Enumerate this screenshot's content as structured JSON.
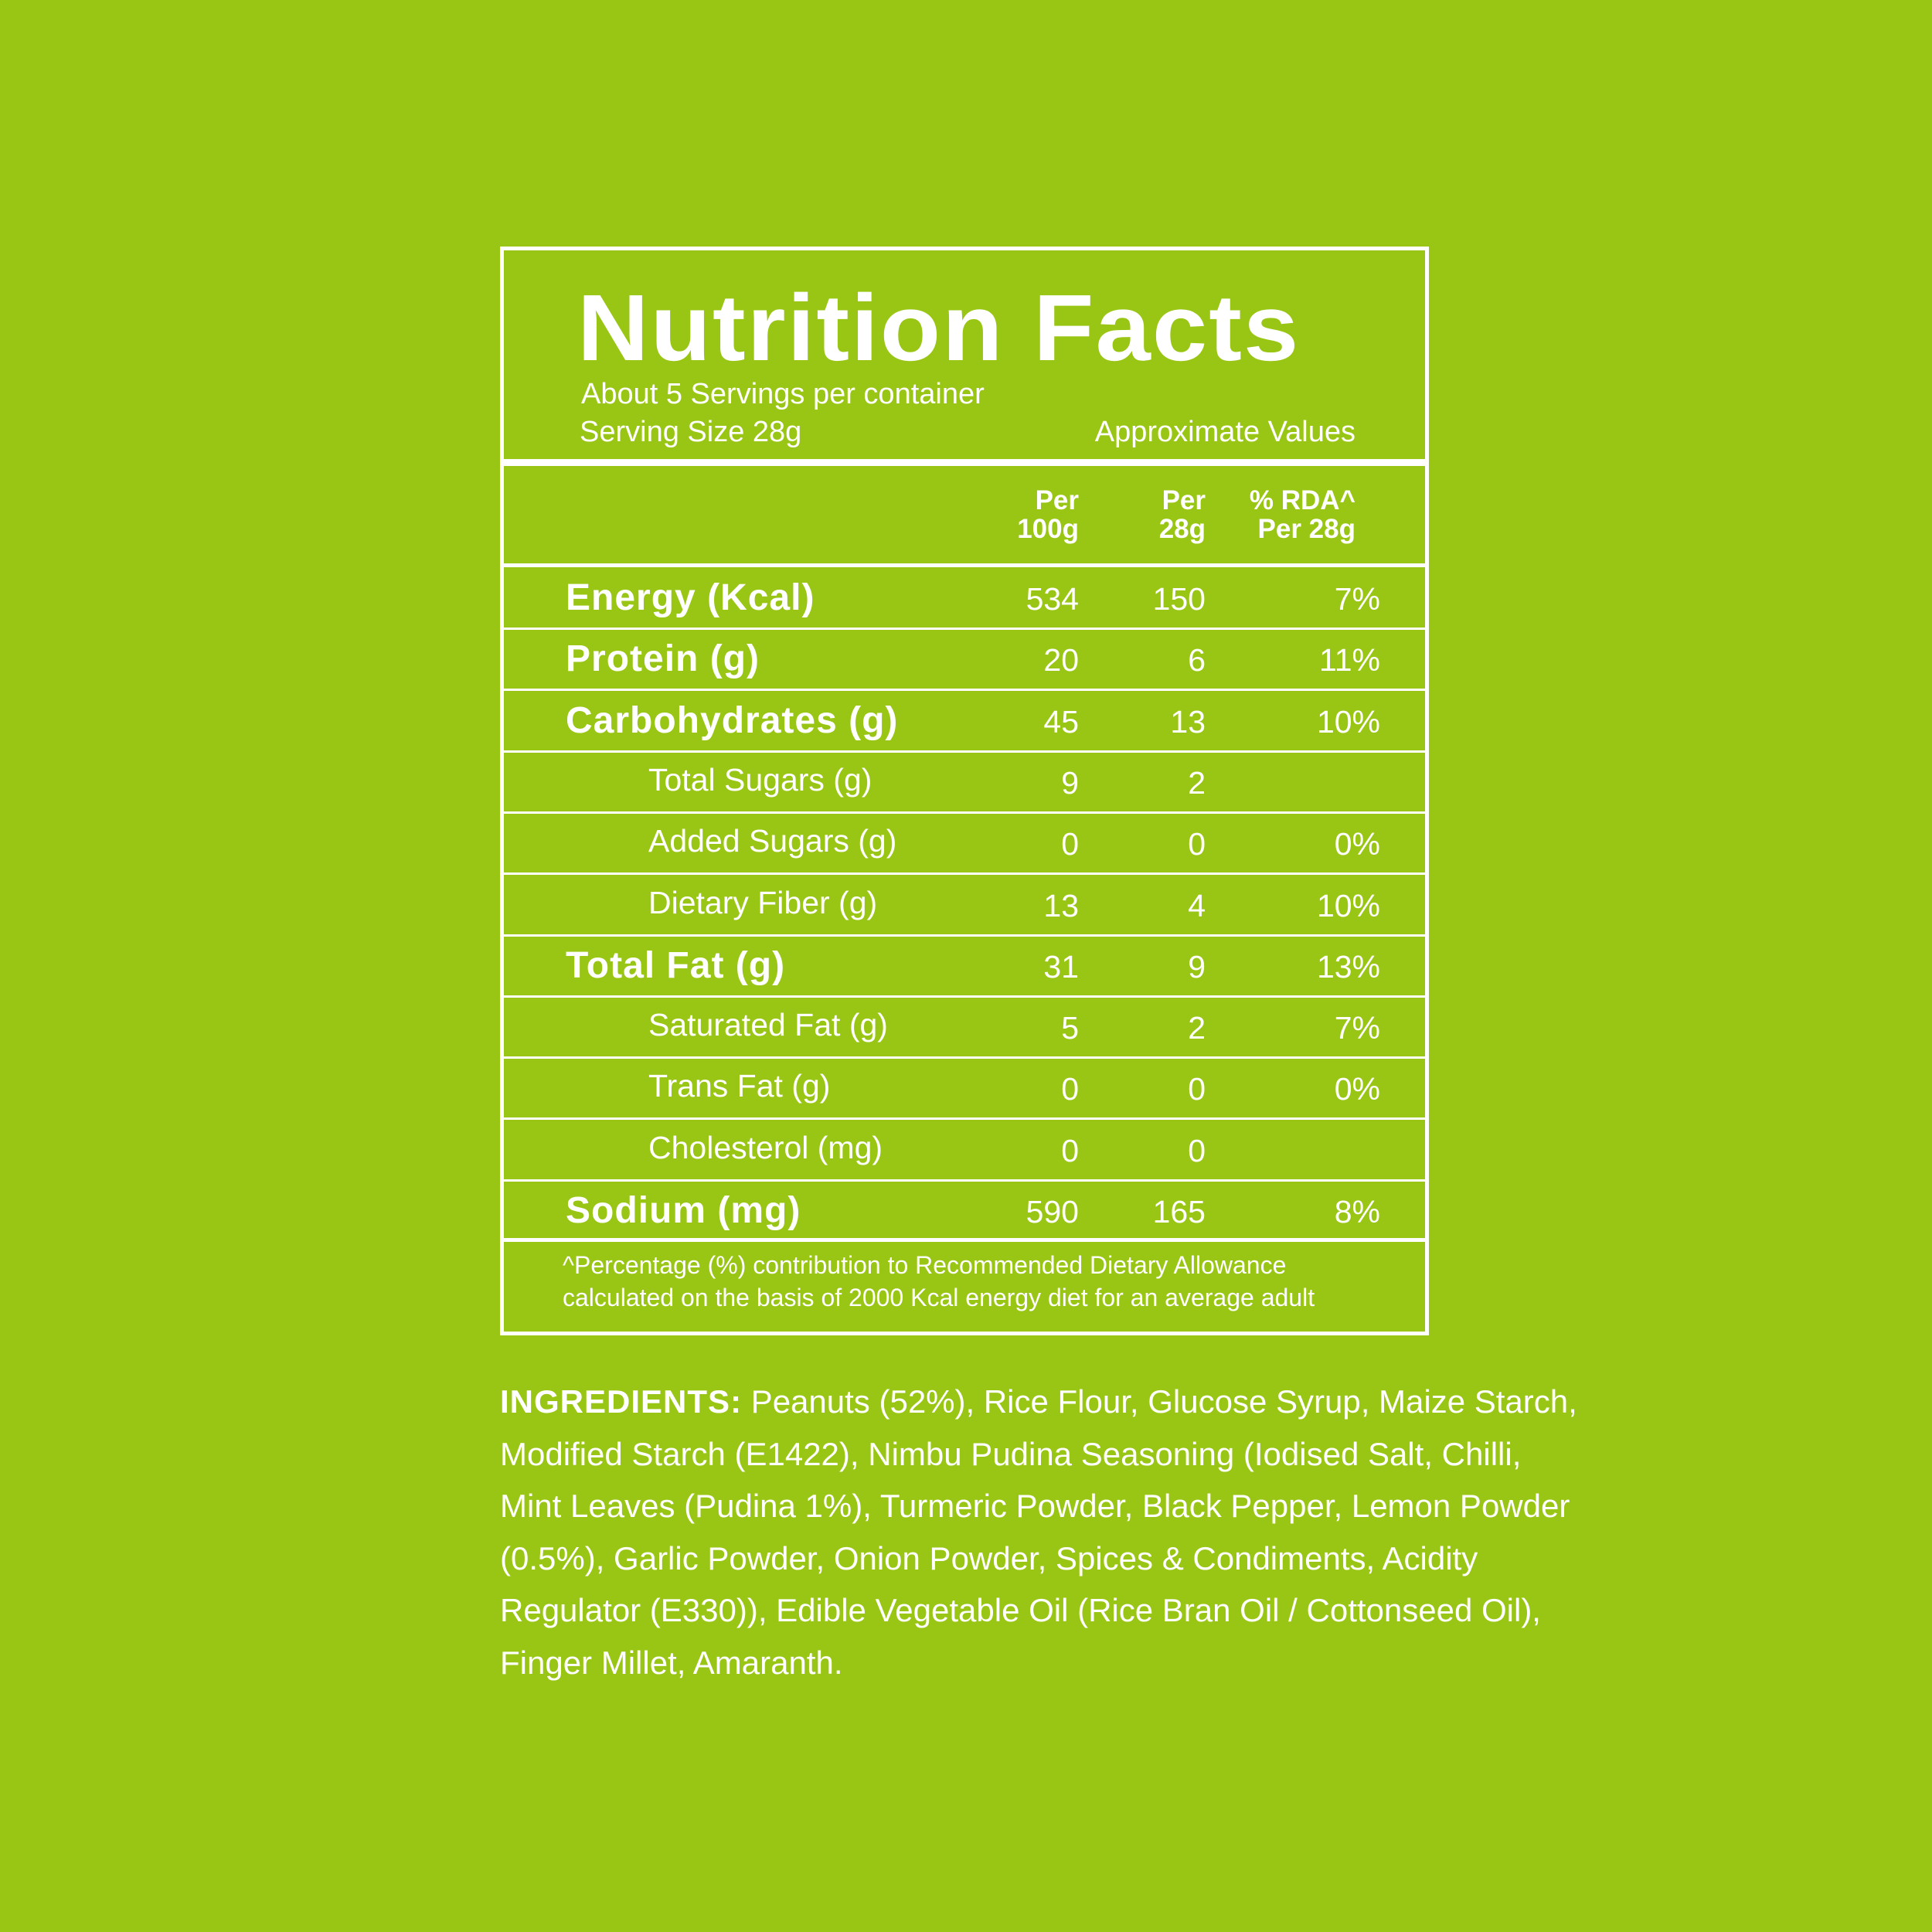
{
  "title": "Nutrition Facts",
  "servings": "About 5 Servings per container",
  "serving_size": "Serving Size 28g",
  "approx": "Approximate Values",
  "columns": [
    {
      "line1": "Per",
      "line2": "100g"
    },
    {
      "line1": "Per",
      "line2": "28g"
    },
    {
      "line1": "% RDA^",
      "line2": "Per 28g"
    }
  ],
  "rows": [
    {
      "label": "Energy (Kcal)",
      "bold": true,
      "per100": "534",
      "per28": "150",
      "rda": "7%"
    },
    {
      "label": "Protein (g)",
      "bold": true,
      "per100": "20",
      "per28": "6",
      "rda": "11%"
    },
    {
      "label": "Carbohydrates (g)",
      "bold": true,
      "per100": "45",
      "per28": "13",
      "rda": "10%"
    },
    {
      "label": "Total Sugars (g)",
      "bold": false,
      "per100": "9",
      "per28": "2",
      "rda": ""
    },
    {
      "label": "Added Sugars (g)",
      "bold": false,
      "per100": "0",
      "per28": "0",
      "rda": "0%"
    },
    {
      "label": "Dietary Fiber (g)",
      "bold": false,
      "per100": "13",
      "per28": "4",
      "rda": "10%"
    },
    {
      "label": "Total Fat (g)",
      "bold": true,
      "per100": "31",
      "per28": "9",
      "rda": "13%"
    },
    {
      "label": "Saturated Fat (g)",
      "bold": false,
      "per100": "5",
      "per28": "2",
      "rda": "7%"
    },
    {
      "label": "Trans Fat (g)",
      "bold": false,
      "per100": "0",
      "per28": "0",
      "rda": "0%"
    },
    {
      "label": "Cholesterol (mg)",
      "bold": false,
      "per100": "0",
      "per28": "0",
      "rda": ""
    },
    {
      "label": "Sodium (mg)",
      "bold": true,
      "per100": "590",
      "per28": "165",
      "rda": "8%"
    }
  ],
  "footnote": {
    "line1": "^Percentage (%) contribution to Recommended Dietary Allowance",
    "line2": "calculated on the basis of 2000 Kcal energy diet for an average adult"
  },
  "ingredients": {
    "heading": "INGREDIENTS:",
    "text": " Peanuts (52%), Rice Flour, Glucose Syrup, Maize Starch, Modified Starch (E1422), Nimbu Pudina Seasoning (Iodised Salt, Chilli, Mint Leaves (Pudina 1%), Turmeric Powder, Black Pepper, Lemon Powder (0.5%), Garlic Powder, Onion Powder, Spices & Condiments, Acidity Regulator (E330)), Edible Vegetable Oil (Rice Bran Oil / Cottonseed Oil), Finger Millet, Amaranth."
  },
  "colors": {
    "background": "#99c614",
    "text": "#ffffff"
  }
}
